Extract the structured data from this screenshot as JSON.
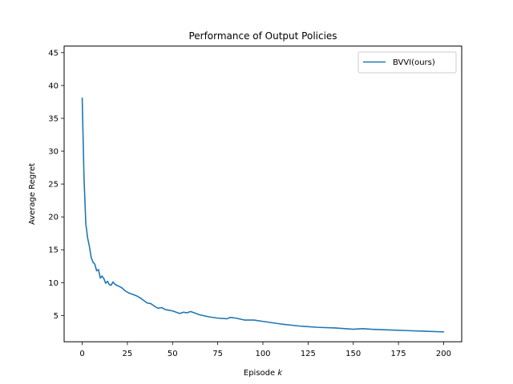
{
  "chart_data": {
    "type": "line",
    "title": "Performance of Output Policies",
    "xlabel_prefix": "Episode ",
    "xlabel_var": "k",
    "ylabel": "Average Regret",
    "xlim": [
      -10,
      210
    ],
    "ylim": [
      1,
      46
    ],
    "xticks": [
      0,
      25,
      50,
      75,
      100,
      125,
      150,
      175,
      200
    ],
    "yticks": [
      5,
      10,
      15,
      20,
      25,
      30,
      35,
      40,
      45
    ],
    "grid": false,
    "legend_position": "top-right",
    "series": [
      {
        "name": "BVVI(ours)",
        "color": "#1f77b4",
        "x": [
          0,
          1,
          2,
          3,
          4,
          5,
          6,
          7,
          8,
          9,
          10,
          11,
          12,
          13,
          14,
          15,
          16,
          17,
          18,
          19,
          20,
          22,
          24,
          26,
          28,
          30,
          32,
          34,
          36,
          38,
          40,
          42,
          44,
          46,
          48,
          50,
          52,
          54,
          56,
          58,
          60,
          65,
          70,
          75,
          80,
          82,
          85,
          90,
          95,
          100,
          110,
          120,
          130,
          140,
          150,
          155,
          160,
          170,
          180,
          190,
          200
        ],
        "y": [
          38.1,
          26.0,
          19.0,
          16.8,
          15.5,
          13.8,
          13.1,
          12.8,
          11.8,
          12.0,
          10.7,
          11.0,
          10.6,
          9.9,
          10.2,
          9.7,
          9.6,
          10.1,
          9.8,
          9.6,
          9.5,
          9.2,
          8.7,
          8.4,
          8.2,
          8.0,
          7.7,
          7.3,
          6.9,
          6.8,
          6.4,
          6.1,
          6.2,
          5.9,
          5.8,
          5.7,
          5.5,
          5.3,
          5.5,
          5.4,
          5.6,
          5.1,
          4.8,
          4.6,
          4.5,
          4.7,
          4.6,
          4.3,
          4.3,
          4.1,
          3.7,
          3.4,
          3.2,
          3.1,
          2.9,
          3.0,
          2.9,
          2.8,
          2.7,
          2.6,
          2.5
        ]
      }
    ]
  }
}
